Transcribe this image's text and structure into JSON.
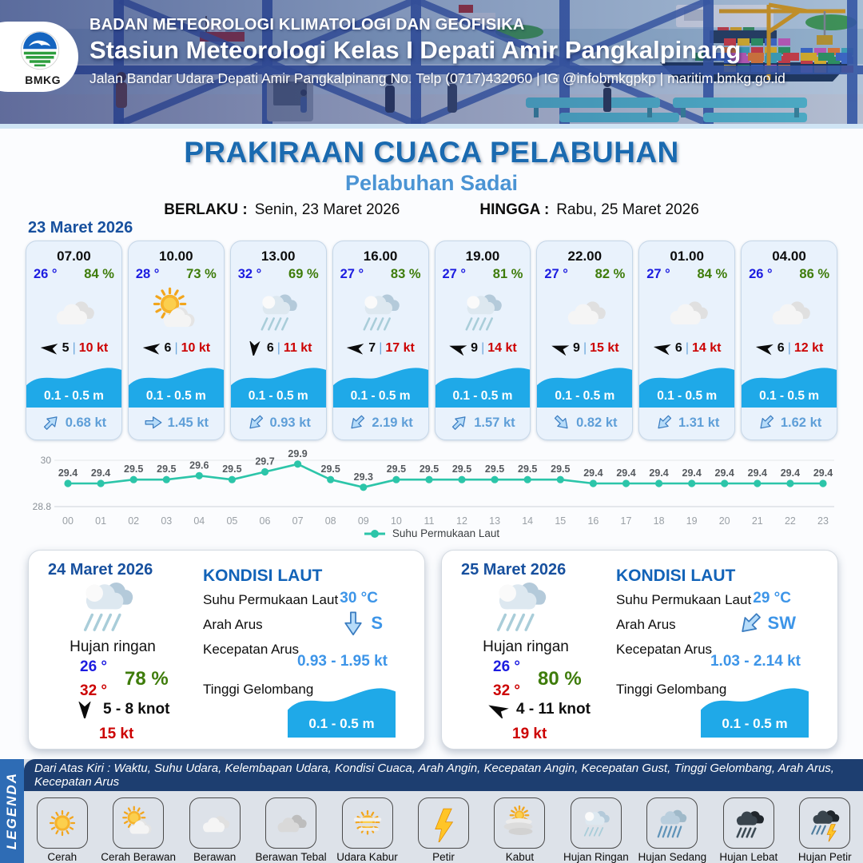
{
  "header": {
    "logo_text": "BMKG",
    "agency": "BADAN METEOROLOGI KLIMATOLOGI DAN GEOFISIKA",
    "station": "Stasiun Meteorologi Kelas I Depati Amir Pangkalpinang",
    "address": "Jalan Bandar Udara Depati Amir Pangkalpinang No. Telp (0717)432060 | IG @infobmkgpkp | maritim.bmkg.go.id"
  },
  "title": {
    "main": "PRAKIRAAN CUACA PELABUHAN",
    "subtitle": "Pelabuhan Sadai",
    "berlaku_label": "BERLAKU :",
    "berlaku_value": "Senin, 23 Maret 2026",
    "hingga_label": "HINGGA :",
    "hingga_value": "Rabu, 25 Maret 2026"
  },
  "day1": {
    "date": "23 Maret 2026",
    "cards": [
      {
        "time": "07.00",
        "temp": "26 °",
        "humidity": "84 %",
        "icon": "berawan",
        "wind_speed": "5",
        "wind_dir_deg": 185,
        "sep": "|",
        "gust": "10 kt",
        "wave": "0.1 - 0.5 m",
        "current_dir_deg": -45,
        "current": "0.68 kt"
      },
      {
        "time": "10.00",
        "temp": "28 °",
        "humidity": "73 %",
        "icon": "cerah-berawan",
        "wind_speed": "6",
        "wind_dir_deg": 185,
        "sep": "|",
        "gust": "10 kt",
        "wave": "0.1 - 0.5 m",
        "current_dir_deg": 0,
        "current": "1.45 kt"
      },
      {
        "time": "13.00",
        "temp": "32 °",
        "humidity": "69 %",
        "icon": "hujan-ringan",
        "wind_speed": "6",
        "wind_dir_deg": 95,
        "sep": "|",
        "gust": "11 kt",
        "wave": "0.1 - 0.5 m",
        "current_dir_deg": 135,
        "current": "0.93 kt"
      },
      {
        "time": "16.00",
        "temp": "27 °",
        "humidity": "83 %",
        "icon": "hujan-ringan",
        "wind_speed": "7",
        "wind_dir_deg": 185,
        "sep": "|",
        "gust": "17 kt",
        "wave": "0.1 - 0.5 m",
        "current_dir_deg": 135,
        "current": "2.19 kt"
      },
      {
        "time": "19.00",
        "temp": "27 °",
        "humidity": "81 %",
        "icon": "hujan-ringan",
        "wind_speed": "9",
        "wind_dir_deg": 197,
        "sep": "|",
        "gust": "14 kt",
        "wave": "0.1 - 0.5 m",
        "current_dir_deg": -45,
        "current": "1.57 kt"
      },
      {
        "time": "22.00",
        "temp": "27 °",
        "humidity": "82 %",
        "icon": "berawan",
        "wind_speed": "9",
        "wind_dir_deg": 197,
        "sep": "|",
        "gust": "15 kt",
        "wave": "0.1 - 0.5 m",
        "current_dir_deg": 45,
        "current": "0.82 kt"
      },
      {
        "time": "01.00",
        "temp": "27 °",
        "humidity": "84 %",
        "icon": "berawan",
        "wind_speed": "6",
        "wind_dir_deg": 190,
        "sep": "|",
        "gust": "14 kt",
        "wave": "0.1 - 0.5 m",
        "current_dir_deg": 135,
        "current": "1.31 kt"
      },
      {
        "time": "04.00",
        "temp": "26 °",
        "humidity": "86 %",
        "icon": "berawan",
        "wind_speed": "6",
        "wind_dir_deg": 190,
        "sep": "|",
        "gust": "12 kt",
        "wave": "0.1 - 0.5 m",
        "current_dir_deg": 135,
        "current": "1.62 kt"
      }
    ]
  },
  "chart_data": {
    "type": "line",
    "x": [
      "00",
      "01",
      "02",
      "03",
      "04",
      "05",
      "06",
      "07",
      "08",
      "09",
      "10",
      "11",
      "12",
      "13",
      "14",
      "15",
      "16",
      "17",
      "18",
      "19",
      "20",
      "21",
      "22",
      "23"
    ],
    "series": [
      {
        "name": "Suhu Permukaan Laut",
        "values": [
          29.4,
          29.4,
          29.5,
          29.5,
          29.6,
          29.5,
          29.7,
          29.9,
          29.5,
          29.3,
          29.5,
          29.5,
          29.5,
          29.5,
          29.5,
          29.5,
          29.4,
          29.4,
          29.4,
          29.4,
          29.4,
          29.4,
          29.4,
          29.4
        ]
      }
    ],
    "ylim": [
      28.8,
      30
    ],
    "yticks": [
      "28.8",
      "30"
    ],
    "legend_position": "bottom",
    "line_color": "#2cc5a9"
  },
  "panels": [
    {
      "date": "24 Maret 2026",
      "weather_icon": "hujan-ringan",
      "weather_label": "Hujan ringan",
      "temp_min": "26 °",
      "temp_max": "32 °",
      "humidity": "78 %",
      "wind_dir_deg": 90,
      "wind_range": "5 - 8 knot",
      "gust": "15 kt",
      "sea": {
        "heading": "KONDISI LAUT",
        "sst_label": "Suhu Permukaan Laut",
        "sst_value": "30 °C",
        "current_dir_label": "Arah Arus",
        "current_dir_value": "S",
        "current_dir_deg": 90,
        "current_speed_label": "Kecepatan Arus",
        "current_speed_value": "0.93  - 1.95 kt",
        "wave_label": "Tinggi Gelombang",
        "wave_value": "0.1 - 0.5 m"
      }
    },
    {
      "date": "25 Maret 2026",
      "weather_icon": "hujan-ringan",
      "weather_label": "Hujan ringan",
      "temp_min": "26 °",
      "temp_max": "32 °",
      "humidity": "80 %",
      "wind_dir_deg": 207,
      "wind_range": "4 - 11 knot",
      "gust": "19 kt",
      "sea": {
        "heading": "KONDISI LAUT",
        "sst_label": "Suhu Permukaan Laut",
        "sst_value": "29 °C",
        "current_dir_label": "Arah Arus",
        "current_dir_value": "SW",
        "current_dir_deg": 135,
        "current_speed_label": "Kecepatan Arus",
        "current_speed_value": "1.03  - 2.14 kt",
        "wave_label": "Tinggi Gelombang",
        "wave_value": "0.1 - 0.5 m"
      }
    }
  ],
  "legend": {
    "title": "LEGENDA",
    "description": "Dari Atas Kiri : Waktu, Suhu Udara, Kelembapan Udara, Kondisi Cuaca, Arah Angin, Kecepatan Angin, Kecepatan Gust, Tinggi Gelombang, Arah Arus, Kecepatan Arus",
    "items": [
      {
        "label": "Cerah",
        "icon": "cerah"
      },
      {
        "label": "Cerah Berawan",
        "icon": "cerah-berawan"
      },
      {
        "label": "Berawan",
        "icon": "berawan"
      },
      {
        "label": "Berawan Tebal",
        "icon": "berawan-tebal"
      },
      {
        "label": "Udara Kabur",
        "icon": "udara-kabur"
      },
      {
        "label": "Petir",
        "icon": "petir"
      },
      {
        "label": "Kabut",
        "icon": "kabut"
      },
      {
        "label": "Hujan Ringan",
        "icon": "hujan-ringan"
      },
      {
        "label": "Hujan Sedang",
        "icon": "hujan-sedang"
      },
      {
        "label": "Hujan Lebat",
        "icon": "hujan-lebat"
      },
      {
        "label": "Hujan Petir",
        "icon": "hujan-petir"
      }
    ]
  },
  "colors": {
    "title_blue": "#1a6ab0",
    "subtitle_blue": "#4b94d4",
    "date_blue": "#17509e",
    "temp_blue": "#1c1ce0",
    "humidity_green": "#3e7c0a",
    "gust_red": "#cc0000",
    "wave_blue": "#1fa9e8",
    "current_blue": "#5f9fd8",
    "value_blue": "#3d95e8",
    "chart_teal": "#2cc5a9",
    "legend_navy": "#1d3e70",
    "legenda_strip_blue": "#2e6cb5"
  }
}
